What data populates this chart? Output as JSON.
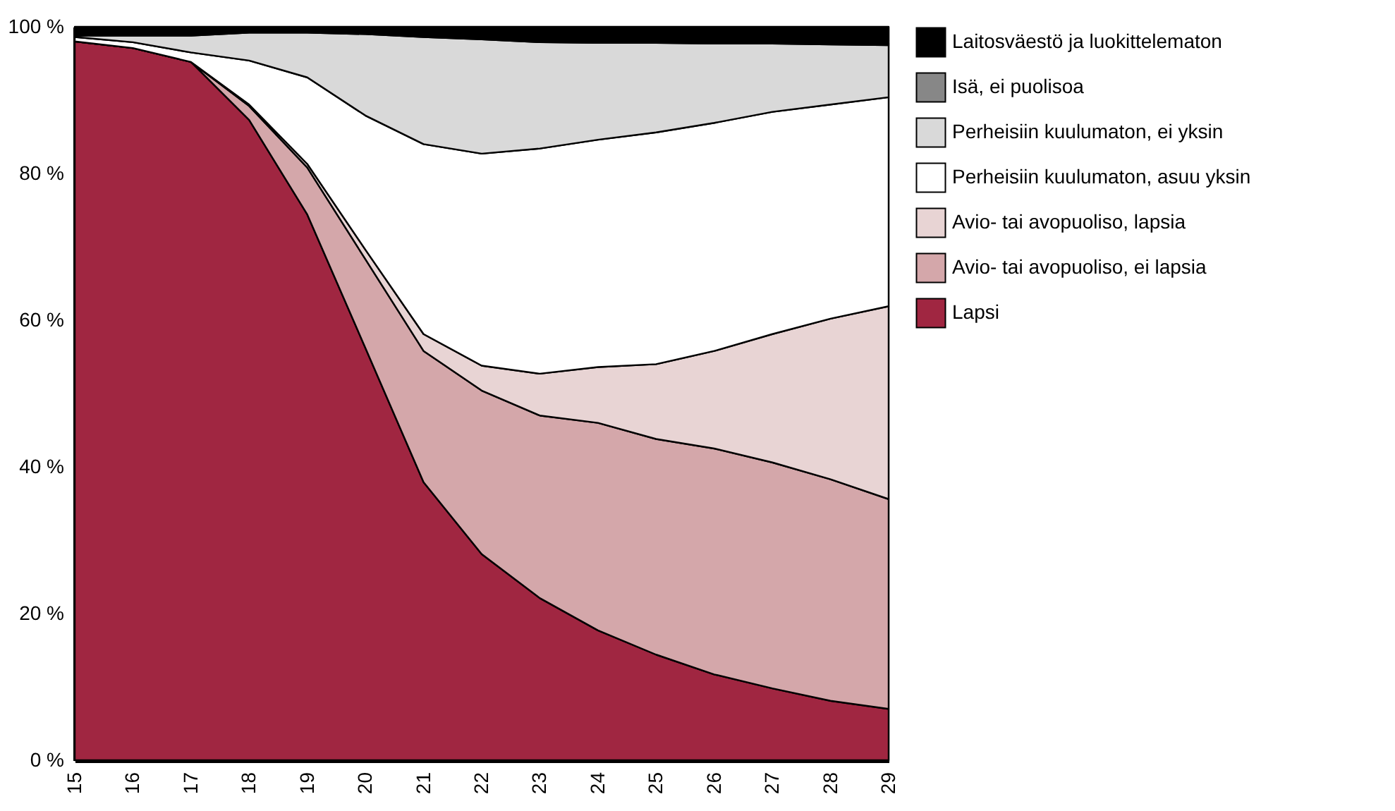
{
  "chart_data": {
    "type": "area",
    "stacked": true,
    "x": [
      15,
      16,
      17,
      18,
      19,
      20,
      21,
      22,
      23,
      24,
      25,
      26,
      27,
      28,
      29
    ],
    "xlim": [
      15,
      29
    ],
    "xticks": [
      15,
      16,
      17,
      18,
      19,
      20,
      21,
      22,
      23,
      24,
      25,
      26,
      27,
      28,
      29
    ],
    "ylim": [
      0,
      100
    ],
    "yticks": [
      {
        "value": 0,
        "label": "0 %"
      },
      {
        "value": 20,
        "label": "20 %"
      },
      {
        "value": 40,
        "label": "40 %"
      },
      {
        "value": 60,
        "label": "60 %"
      },
      {
        "value": 80,
        "label": "80 %"
      },
      {
        "value": 100,
        "label": "100 %"
      }
    ],
    "legend": "top right",
    "series": [
      {
        "name": "Lapsi",
        "color": "#a02641",
        "values": [
          98,
          97.1,
          95.2,
          87.3,
          74.4,
          56.2,
          37.9,
          28.1,
          22.1,
          17.7,
          14.4,
          11.7,
          9.8,
          8.1,
          7.0
        ]
      },
      {
        "name": "Avio- tai avopuoliso, ei lapsia",
        "color": "#d4a7aa",
        "values": [
          0,
          0,
          0,
          1.9,
          6.4,
          12.1,
          17.9,
          22.3,
          24.9,
          28.3,
          29.4,
          30.8,
          30.8,
          30.2,
          28.6
        ]
      },
      {
        "name": "Avio- tai avopuoliso, lapsia",
        "color": "#e8d4d4",
        "values": [
          0,
          0,
          0,
          0.2,
          0.5,
          1.3,
          2.3,
          3.4,
          5.7,
          7.6,
          10.2,
          13.3,
          17.5,
          21.9,
          26.3
        ]
      },
      {
        "name": "Perheisiin kuulumaton, asuu yksin",
        "color": "#ffffff",
        "values": [
          0.6,
          0.8,
          1.3,
          6.0,
          11.8,
          18.3,
          25.9,
          28.9,
          30.7,
          31.0,
          31.6,
          31.1,
          30.3,
          29.2,
          28.5
        ]
      },
      {
        "name": "Perheisiin kuulumaton, ei yksin",
        "color": "#d9d9d9",
        "values": [
          0.2,
          0.9,
          2.3,
          3.8,
          6.1,
          11.1,
          14.6,
          15.6,
          14.5,
          13.2,
          12.2,
          10.8,
          9.3,
          8.2,
          7.1
        ]
      },
      {
        "name": "Isä, ei puolisoa",
        "color": "#878787",
        "values": [
          0.2,
          0.2,
          0.2,
          0.2,
          0.2,
          0.2,
          0.2,
          0.2,
          0.2,
          0.2,
          0.2,
          0.2,
          0.2,
          0.2,
          0.2
        ]
      },
      {
        "name": "Laitosväestö ja luokittelematon",
        "color": "#000000",
        "values": [
          1.0,
          1.0,
          1.0,
          0.6,
          0.6,
          0.8,
          1.2,
          1.5,
          1.9,
          2.0,
          2.0,
          2.1,
          2.1,
          2.2,
          2.3
        ]
      }
    ]
  }
}
